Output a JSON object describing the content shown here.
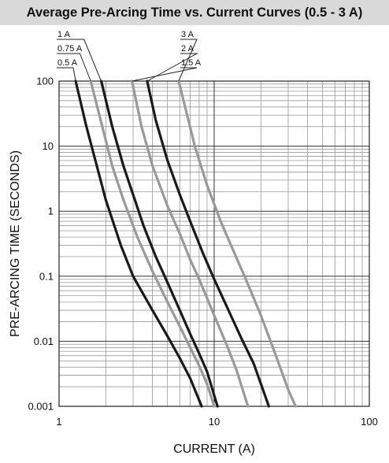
{
  "chart_data": {
    "type": "line",
    "title": "Average Pre-Arcing Time vs. Current Curves (0.5 - 3 A)",
    "xlabel": "CURRENT (A)",
    "ylabel": "PRE-ARCING TIME (SECONDS)",
    "x_scale": "log",
    "y_scale": "log",
    "xlim": [
      1,
      100
    ],
    "ylim": [
      0.001,
      100
    ],
    "x_ticks": [
      "1",
      "10",
      "100"
    ],
    "y_ticks": [
      "100",
      "10",
      "1",
      "0.1",
      "0.01",
      "0.001"
    ],
    "grid": true,
    "legend_placement": "top-left",
    "series": [
      {
        "name": "0.5 A",
        "color": "#1a1a1a",
        "x": [
          1.28,
          1.5,
          1.75,
          2.0,
          2.5,
          3.0,
          4.0,
          5.0,
          6.0,
          7.0,
          8.3
        ],
        "y": [
          100,
          20,
          5,
          1.5,
          0.3,
          0.1,
          0.03,
          0.012,
          0.0055,
          0.0027,
          0.001
        ]
      },
      {
        "name": "0.75 A",
        "color": "#999999",
        "x": [
          1.6,
          1.9,
          2.2,
          2.6,
          3.2,
          4.0,
          5.0,
          6.0,
          7.0,
          8.0,
          9.0,
          10.0
        ],
        "y": [
          100,
          20,
          5,
          1.5,
          0.4,
          0.12,
          0.04,
          0.017,
          0.008,
          0.0042,
          0.0022,
          0.001
        ]
      },
      {
        "name": "1 A",
        "color": "#1a1a1a",
        "x": [
          1.87,
          2.2,
          2.6,
          3.0,
          3.5,
          4.2,
          5.0,
          6.0,
          7.0,
          8.0,
          9.0,
          10.5
        ],
        "y": [
          100,
          20,
          5,
          1.8,
          0.6,
          0.2,
          0.08,
          0.03,
          0.013,
          0.0065,
          0.0034,
          0.001
        ]
      },
      {
        "name": "1.5 A",
        "color": "#999999",
        "x": [
          2.95,
          3.4,
          4.0,
          5.0,
          6.0,
          7.0,
          8.0,
          10.0,
          12.0,
          14.0,
          16.5
        ],
        "y": [
          100,
          20,
          5,
          1.2,
          0.45,
          0.18,
          0.09,
          0.025,
          0.009,
          0.0035,
          0.001
        ]
      },
      {
        "name": "2 A",
        "color": "#1a1a1a",
        "x": [
          3.7,
          4.2,
          5.0,
          6.0,
          7.0,
          8.5,
          10.0,
          12.0,
          15.0,
          18.0,
          22.5
        ],
        "y": [
          100,
          25,
          6,
          1.8,
          0.7,
          0.22,
          0.09,
          0.035,
          0.011,
          0.0045,
          0.001
        ]
      },
      {
        "name": "3 A",
        "color": "#999999",
        "x": [
          5.9,
          6.5,
          7.5,
          9.0,
          11.0,
          13.0,
          16.0,
          20.0,
          25.0,
          30.0,
          33.5
        ],
        "y": [
          100,
          40,
          10,
          2.5,
          0.7,
          0.28,
          0.09,
          0.025,
          0.006,
          0.0018,
          0.001
        ]
      }
    ]
  }
}
